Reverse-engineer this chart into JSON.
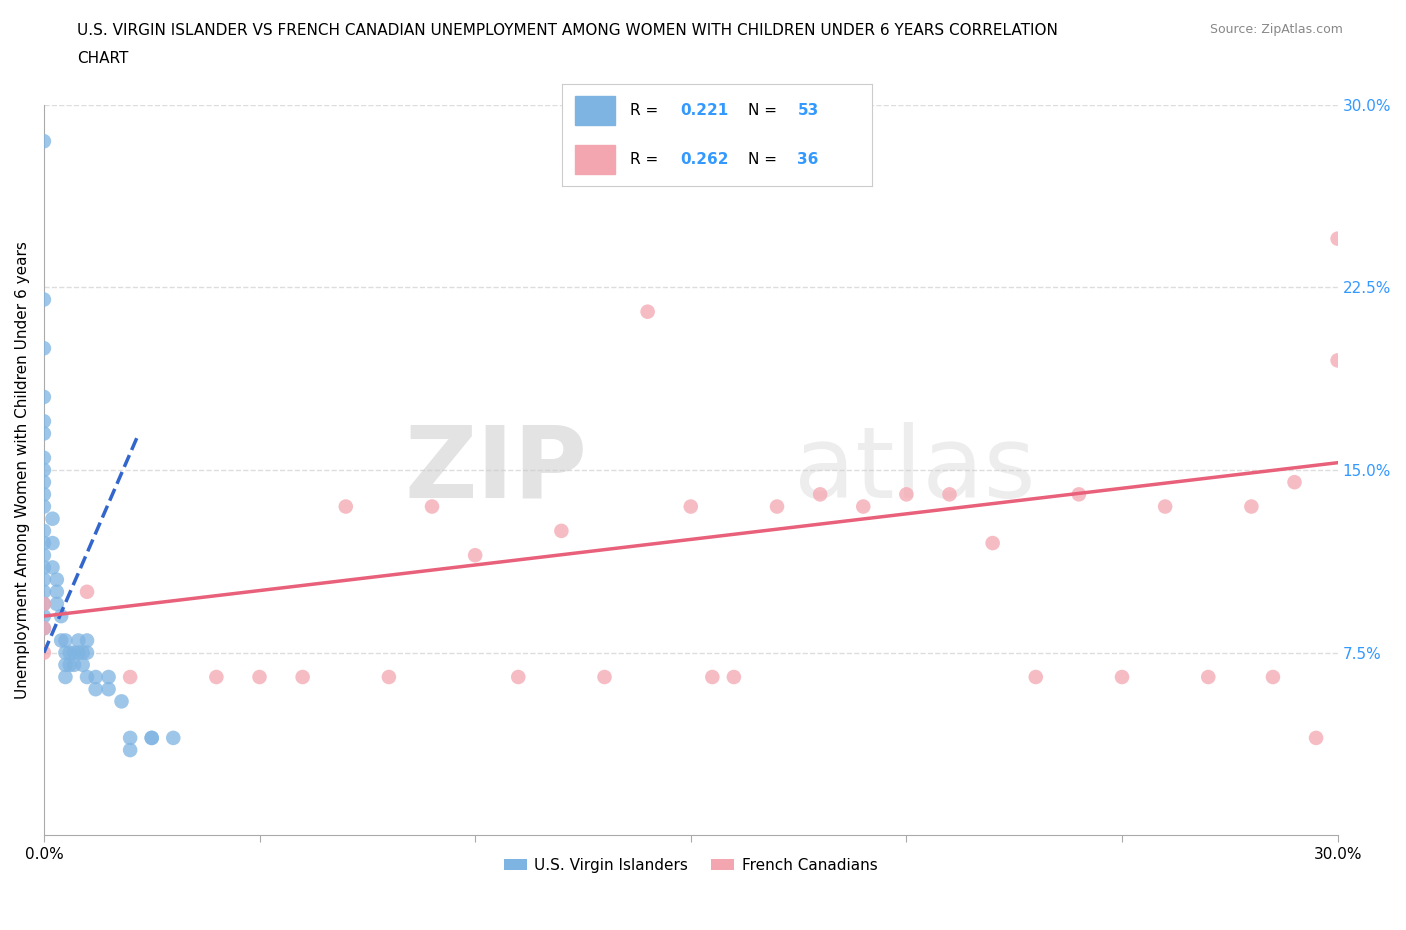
{
  "title_line1": "U.S. VIRGIN ISLANDER VS FRENCH CANADIAN UNEMPLOYMENT AMONG WOMEN WITH CHILDREN UNDER 6 YEARS CORRELATION",
  "title_line2": "CHART",
  "source_text": "Source: ZipAtlas.com",
  "ylabel": "Unemployment Among Women with Children Under 6 years",
  "xlim": [
    0,
    0.3
  ],
  "ylim": [
    0,
    0.3
  ],
  "yticks_right": [
    0.075,
    0.15,
    0.225,
    0.3
  ],
  "ytick_labels_right": [
    "7.5%",
    "15.0%",
    "22.5%",
    "30.0%"
  ],
  "watermark_zip": "ZIP",
  "watermark_atlas": "atlas",
  "legend_R1": "0.221",
  "legend_N1": "53",
  "legend_R2": "0.262",
  "legend_N2": "36",
  "blue_color": "#7EB4E2",
  "pink_color": "#F4A6B0",
  "blue_line_color": "#3366CC",
  "pink_line_color": "#E8607A",
  "blue_scatter_x": [
    0.0,
    0.0,
    0.0,
    0.0,
    0.0,
    0.0,
    0.0,
    0.0,
    0.0,
    0.0,
    0.0,
    0.0,
    0.0,
    0.0,
    0.0,
    0.0,
    0.0,
    0.0,
    0.0,
    0.0,
    0.002,
    0.002,
    0.002,
    0.003,
    0.003,
    0.003,
    0.004,
    0.004,
    0.005,
    0.005,
    0.005,
    0.005,
    0.006,
    0.006,
    0.007,
    0.007,
    0.008,
    0.008,
    0.009,
    0.009,
    0.01,
    0.01,
    0.01,
    0.012,
    0.012,
    0.015,
    0.015,
    0.018,
    0.02,
    0.02,
    0.025,
    0.025,
    0.03
  ],
  "blue_scatter_y": [
    0.285,
    0.22,
    0.2,
    0.18,
    0.17,
    0.165,
    0.155,
    0.15,
    0.145,
    0.14,
    0.135,
    0.125,
    0.12,
    0.115,
    0.11,
    0.105,
    0.1,
    0.095,
    0.09,
    0.085,
    0.13,
    0.12,
    0.11,
    0.105,
    0.1,
    0.095,
    0.09,
    0.08,
    0.08,
    0.075,
    0.07,
    0.065,
    0.075,
    0.07,
    0.075,
    0.07,
    0.08,
    0.075,
    0.075,
    0.07,
    0.08,
    0.075,
    0.065,
    0.065,
    0.06,
    0.065,
    0.06,
    0.055,
    0.04,
    0.035,
    0.04,
    0.04,
    0.04
  ],
  "pink_scatter_x": [
    0.0,
    0.0,
    0.0,
    0.01,
    0.02,
    0.04,
    0.05,
    0.06,
    0.07,
    0.08,
    0.09,
    0.1,
    0.11,
    0.12,
    0.13,
    0.14,
    0.15,
    0.155,
    0.16,
    0.17,
    0.18,
    0.19,
    0.2,
    0.21,
    0.22,
    0.23,
    0.24,
    0.25,
    0.26,
    0.27,
    0.28,
    0.285,
    0.29,
    0.295,
    0.3,
    0.3
  ],
  "pink_scatter_y": [
    0.095,
    0.085,
    0.075,
    0.1,
    0.065,
    0.065,
    0.065,
    0.065,
    0.135,
    0.065,
    0.135,
    0.115,
    0.065,
    0.125,
    0.065,
    0.215,
    0.135,
    0.065,
    0.065,
    0.135,
    0.14,
    0.135,
    0.14,
    0.14,
    0.12,
    0.065,
    0.14,
    0.065,
    0.135,
    0.065,
    0.135,
    0.065,
    0.145,
    0.04,
    0.195,
    0.245
  ],
  "blue_trend_x": [
    0.0,
    0.022
  ],
  "blue_trend_y": [
    0.075,
    0.165
  ],
  "pink_trend_x": [
    0.0,
    0.3
  ],
  "pink_trend_y": [
    0.09,
    0.153
  ],
  "background_color": "#FFFFFF",
  "grid_color": "#DDDDDD"
}
